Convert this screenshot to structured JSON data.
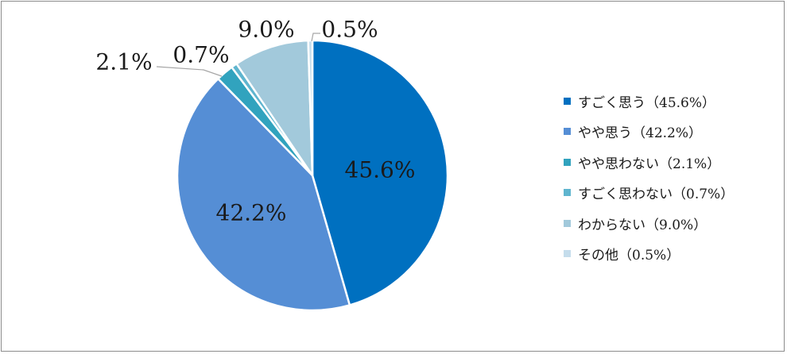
{
  "chart_data": {
    "type": "pie",
    "series": [
      {
        "name": "すごく思う（45.6%）",
        "value": 45.6,
        "label": "45.6%",
        "color": "#0070C0"
      },
      {
        "name": "やや思う（42.2%）",
        "value": 42.2,
        "label": "42.2%",
        "color": "#558ED5"
      },
      {
        "name": "やや思わない（2.1%）",
        "value": 2.1,
        "label": "2.1%",
        "color": "#31A3BE"
      },
      {
        "name": "すごく思わない（0.7%）",
        "value": 0.7,
        "label": "0.7%",
        "color": "#5FB5CF"
      },
      {
        "name": "わからない（9.0%）",
        "value": 9.0,
        "label": "9.0%",
        "color": "#A2C9DB"
      },
      {
        "name": "その他（0.5%）",
        "value": 0.5,
        "label": "0.5%",
        "color": "#C5DDEC"
      }
    ],
    "legend_position": "right"
  }
}
